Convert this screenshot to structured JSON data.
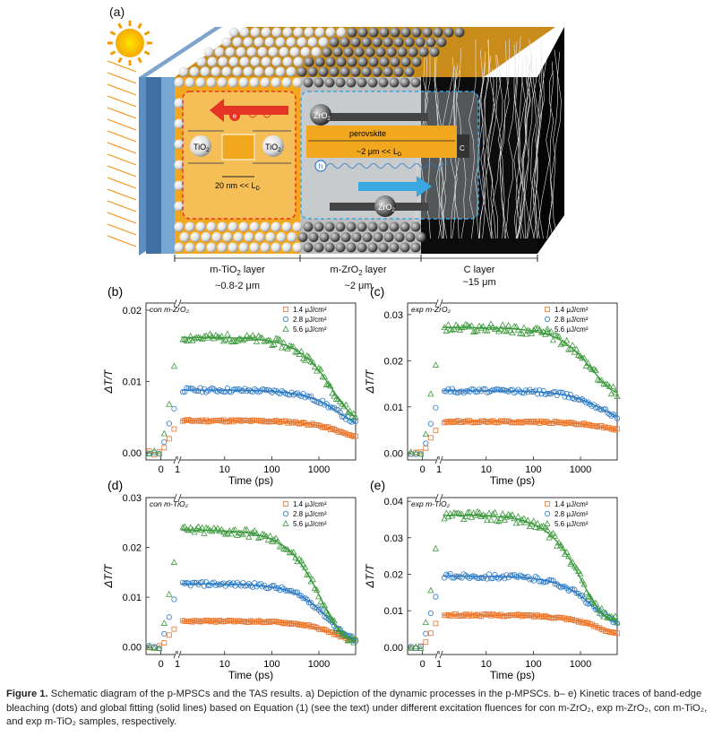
{
  "panel_a": {
    "letter": "(a)",
    "labels": {
      "zro_top": "ZrO",
      "zro_bottom": "ZrO",
      "zro_sub": "2",
      "tio_left": "TiO",
      "tio_right": "TiO",
      "tio_sub": "2",
      "electron": "e",
      "hole": "h",
      "perovskite": "perovskite",
      "ld_right": "~2 μm << L",
      "ld_left": "20 nm << L",
      "ld_sub": "D",
      "c_label": "C"
    },
    "layers": [
      {
        "name": "m-TiO",
        "sub": "2",
        "tail": " layer",
        "thickness": "~0.8-2 μm"
      },
      {
        "name": "m-ZrO",
        "sub": "2",
        "tail": " layer",
        "thickness": "~2 μm"
      },
      {
        "name": "C layer",
        "sub": "",
        "tail": "",
        "thickness": "~15 μm"
      }
    ]
  },
  "axis_text": {
    "xlabel": "Time (ps)",
    "ylabel": "ΔT/T",
    "legend": [
      "1.4 μJ/cm",
      "2.8 μJ/cm",
      "5.6 μJ/cm"
    ],
    "legend_sup": "2"
  },
  "colors": {
    "series_1": "#E8742A",
    "series_2": "#2E7BC4",
    "series_3": "#3E9A3E",
    "perovskite": "#F2A81E",
    "substrate": "#5B8EC2",
    "electron_arrow": "#E53423",
    "hole_arrow": "#3AA7E0"
  },
  "chart_data": [
    {
      "panel": "(b)",
      "type": "scatter",
      "title": "con m-ZrO₂",
      "x_scale": "log-after-break",
      "xticks": [
        "0",
        "1",
        "10",
        "100",
        "1000"
      ],
      "yticks": [
        "0.00",
        "0.01",
        "0.02"
      ],
      "ylim": [
        -0.001,
        0.021
      ],
      "xlabel": "Time (ps)",
      "ylabel": "ΔT/T",
      "series": [
        {
          "name": "1.4 μJ/cm²",
          "marker": "square",
          "plateau": 0.0045,
          "final": 0.0017
        },
        {
          "name": "2.8 μJ/cm²",
          "marker": "circle",
          "plateau": 0.0088,
          "final": 0.0035
        },
        {
          "name": "5.6 μJ/cm²",
          "marker": "triangle",
          "plateau": 0.0162,
          "final": 0.0045
        }
      ]
    },
    {
      "panel": "(c)",
      "type": "scatter",
      "title": "exp m-ZrO₂",
      "x_scale": "log-after-break",
      "xticks": [
        "0",
        "1",
        "10",
        "100",
        "1000"
      ],
      "yticks": [
        "0.00",
        "0.01",
        "0.02",
        "0.03"
      ],
      "ylim": [
        -0.0015,
        0.0325
      ],
      "xlabel": "Time (ps)",
      "ylabel": "ΔT/T",
      "series": [
        {
          "name": "1.4 μJ/cm²",
          "marker": "square",
          "plateau": 0.0068,
          "final": 0.0045
        },
        {
          "name": "2.8 μJ/cm²",
          "marker": "circle",
          "plateau": 0.0135,
          "final": 0.0072
        },
        {
          "name": "5.6 μJ/cm²",
          "marker": "triangle",
          "plateau": 0.0272,
          "final": 0.0125
        }
      ]
    },
    {
      "panel": "(d)",
      "type": "scatter",
      "title": "con m-TiO₂",
      "x_scale": "log-after-break",
      "xticks": [
        "0",
        "1",
        "10",
        "100",
        "1000"
      ],
      "yticks": [
        "0.00",
        "0.01",
        "0.02",
        "0.03"
      ],
      "ylim": [
        -0.0015,
        0.03
      ],
      "xlabel": "Time (ps)",
      "ylabel": "ΔT/T",
      "series": [
        {
          "name": "1.4 μJ/cm²",
          "marker": "square",
          "plateau": 0.0052,
          "final": 0.0008
        },
        {
          "name": "2.8 μJ/cm²",
          "marker": "circle",
          "plateau": 0.0127,
          "final": 0.0012
        },
        {
          "name": "5.6 μJ/cm²",
          "marker": "triangle",
          "plateau": 0.0235,
          "final": 0.0012
        }
      ]
    },
    {
      "panel": "(e)",
      "type": "scatter",
      "title": "exp m-TiO₂",
      "x_scale": "log-after-break",
      "xticks": [
        "0",
        "1",
        "10",
        "100",
        "1000"
      ],
      "yticks": [
        "0.00",
        "0.01",
        "0.02",
        "0.03",
        "0.04"
      ],
      "ylim": [
        -0.002,
        0.041
      ],
      "xlabel": "Time (ps)",
      "ylabel": "ΔT/T",
      "series": [
        {
          "name": "1.4 μJ/cm²",
          "marker": "square",
          "plateau": 0.0088,
          "final": 0.003
        },
        {
          "name": "2.8 μJ/cm²",
          "marker": "circle",
          "plateau": 0.0195,
          "final": 0.0062
        },
        {
          "name": "5.6 μJ/cm²",
          "marker": "triangle",
          "plateau": 0.0362,
          "final": 0.0072
        }
      ]
    }
  ],
  "caption": {
    "lead": "Figure 1.",
    "text": "Schematic diagram of the p-MPSCs and the TAS results. a) Depiction of the dynamic processes in the p-MPSCs. b– e) Kinetic traces of band-edge bleaching (dots) and global fitting (solid lines) based on Equation (1) (see the text) under different excitation fluences for con m-ZrO₂, exp m-ZrO₂, con m-TiO₂, and exp m-TiO₂ samples, respectively."
  }
}
